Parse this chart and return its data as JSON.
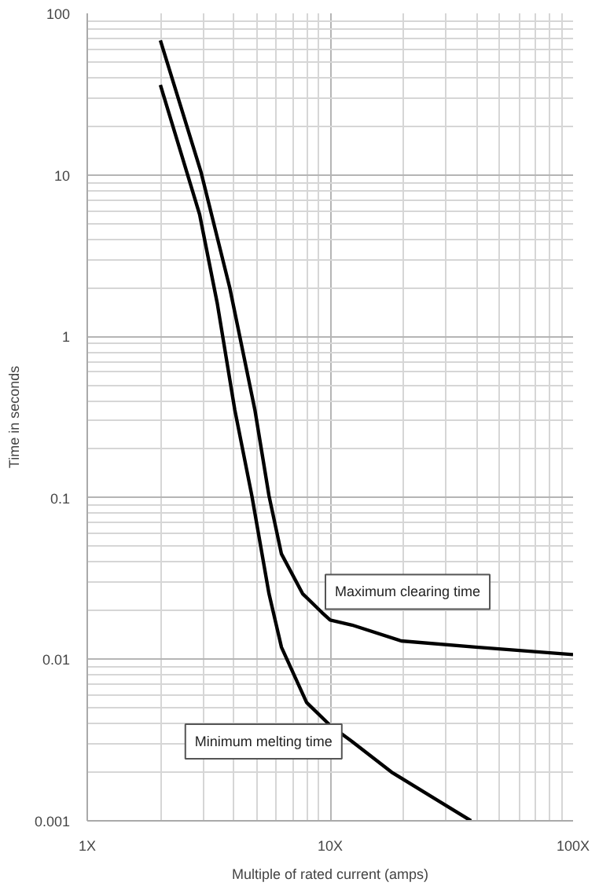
{
  "chart_data": {
    "type": "line",
    "xlabel": "Multiple of rated current (amps)",
    "ylabel": "Time in seconds",
    "log": "xy",
    "grid": true,
    "marker": "none",
    "line_style": "solid",
    "xlim": [
      1,
      100
    ],
    "xticks": [
      {
        "value": 1,
        "label": "1X"
      },
      {
        "value": 10,
        "label": "10X"
      },
      {
        "value": 100,
        "label": "100X"
      }
    ],
    "ylim": [
      0.001,
      100
    ],
    "yticks": [
      0.001,
      0.01,
      0.1,
      1,
      10,
      100
    ],
    "series": [
      {
        "name": "Maximum clearing time",
        "color": "#000000",
        "x": [
          2,
          2.94,
          3.86,
          4.9,
          5.6,
          6.3,
          7.7,
          9.25,
          10,
          12.3,
          19.6,
          39.8,
          100
        ],
        "values": [
          68,
          10.4,
          2,
          0.35,
          0.103,
          0.045,
          0.0255,
          0.0195,
          0.0175,
          0.0163,
          0.013,
          0.0119,
          0.0107
        ]
      },
      {
        "name": "Minimum melting time",
        "color": "#000000",
        "x": [
          2,
          2.9,
          3.43,
          4.05,
          4.76,
          5.6,
          6.3,
          8,
          10,
          12.3,
          17.9,
          38
        ],
        "values": [
          36,
          5.7,
          1.6,
          0.35,
          0.103,
          0.0255,
          0.0119,
          0.0054,
          0.0039,
          0.0031,
          0.002,
          0.001
        ]
      }
    ]
  }
}
